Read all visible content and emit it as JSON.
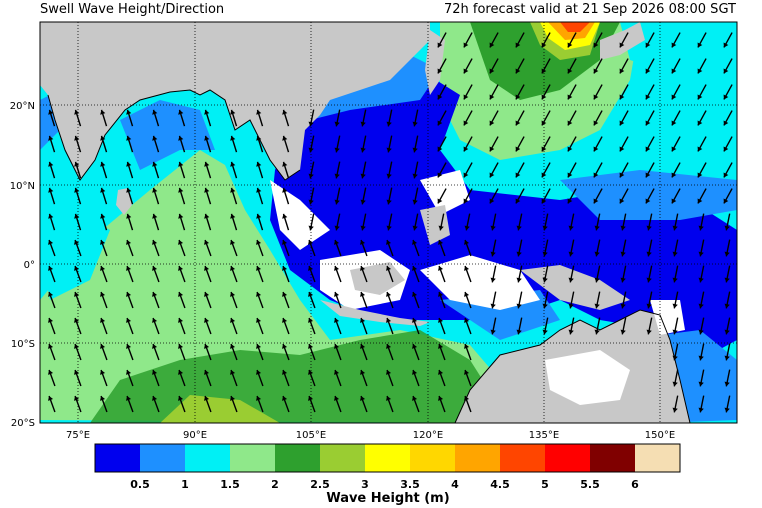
{
  "header": {
    "title": "Swell Wave Height/Direction",
    "valid_time": "72h forecast valid at 21 Sep 2026 08:00 SGT"
  },
  "axes": {
    "lon_ticks": [
      "75°E",
      "90°E",
      "105°E",
      "120°E",
      "135°E",
      "150°E"
    ],
    "lat_ticks": [
      "20°N",
      "10°N",
      "0°",
      "10°S",
      "20°S"
    ]
  },
  "legend": {
    "title": "Wave Height (m)",
    "tick_labels": [
      "0.5",
      "1",
      "1.5",
      "2",
      "2.5",
      "3",
      "3.5",
      "4",
      "4.5",
      "5",
      "5.5",
      "6"
    ],
    "colors": [
      "#0000ee",
      "#1e90ff",
      "#00f0f5",
      "#8fe88a",
      "#2ea02e",
      "#9acd32",
      "#ffff00",
      "#ffd700",
      "#ffa500",
      "#ff4500",
      "#ff0000",
      "#800000",
      "#f5deb3"
    ]
  },
  "colors": {
    "land": "#c8c8c8",
    "no_data": "#ffffff",
    "arrow": "#000000"
  }
}
